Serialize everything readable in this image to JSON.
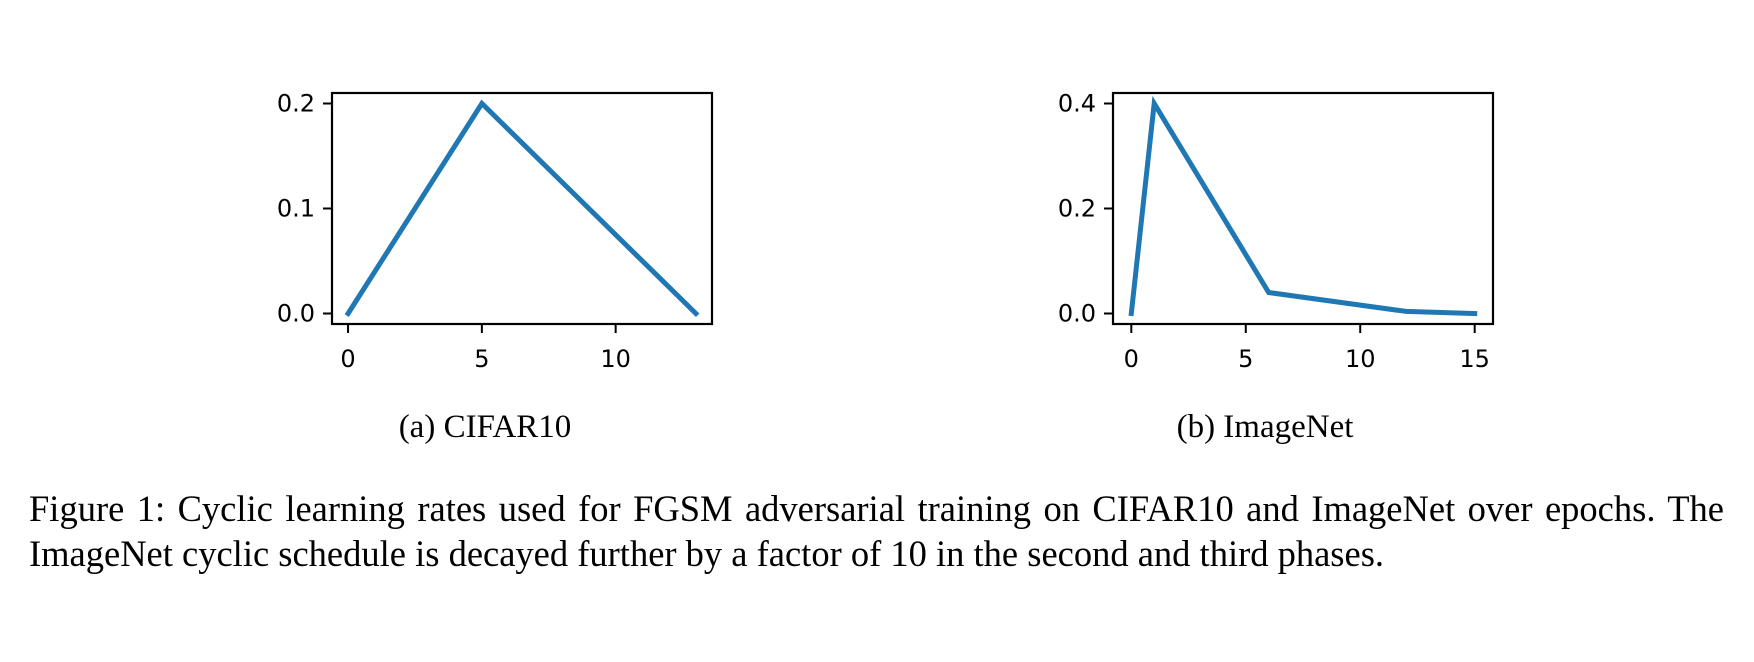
{
  "figure": {
    "caption": "Figure 1: Cyclic learning rates used for FGSM adversarial training on CIFAR10 and ImageNet over epochs. The ImageNet cyclic schedule is decayed further by a factor of 10 in the second and third phases."
  },
  "chart_data": [
    {
      "type": "line",
      "caption": "(a) CIFAR10",
      "color": "#1f77b4",
      "xlim": [
        -0.6,
        13.6
      ],
      "ylim": [
        -0.01,
        0.21
      ],
      "xticks": [
        0,
        5,
        10
      ],
      "yticks": [
        0.0,
        0.1,
        0.2
      ],
      "xtick_labels": [
        "0",
        "5",
        "10"
      ],
      "ytick_labels": [
        "0.0",
        "0.1",
        "0.2"
      ],
      "grid": false,
      "series": [
        {
          "x": [
            0,
            5,
            13
          ],
          "y": [
            0.0,
            0.2,
            0.0
          ]
        }
      ]
    },
    {
      "type": "line",
      "caption": "(b) ImageNet",
      "color": "#1f77b4",
      "xlim": [
        -0.8,
        15.8
      ],
      "ylim": [
        -0.02,
        0.42
      ],
      "xticks": [
        0,
        5,
        10,
        15
      ],
      "yticks": [
        0.0,
        0.2,
        0.4
      ],
      "xtick_labels": [
        "0",
        "5",
        "10",
        "15"
      ],
      "ytick_labels": [
        "0.0",
        "0.2",
        "0.4"
      ],
      "grid": false,
      "series": [
        {
          "x": [
            0,
            1,
            6,
            12,
            15
          ],
          "y": [
            0.0,
            0.4,
            0.04,
            0.004,
            0.0
          ]
        }
      ]
    }
  ]
}
